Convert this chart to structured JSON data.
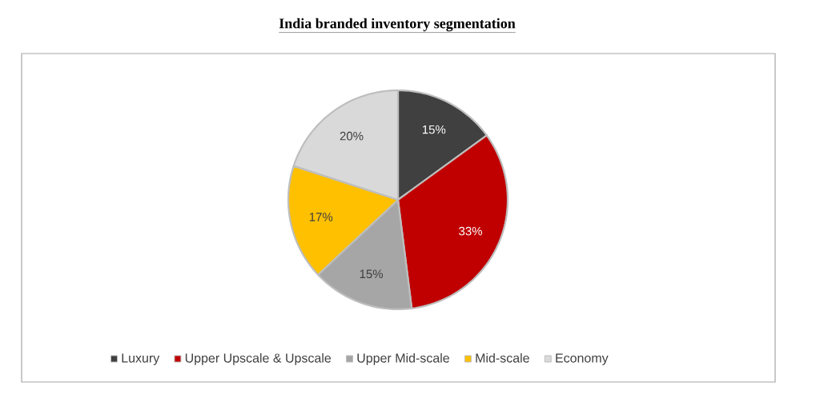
{
  "chart_data": {
    "type": "pie",
    "title": "India branded inventory segmentation",
    "categories": [
      "Luxury",
      "Upper Upscale & Upscale",
      "Upper Mid-scale",
      "Mid-scale",
      "Economy"
    ],
    "values": [
      15,
      33,
      15,
      17,
      20
    ],
    "colors": [
      "#404040",
      "#c00000",
      "#a6a6a6",
      "#ffc000",
      "#d9d9d9"
    ],
    "value_labels": [
      "15%",
      "33%",
      "15%",
      "17%",
      "20%"
    ],
    "legend": "bottom"
  }
}
